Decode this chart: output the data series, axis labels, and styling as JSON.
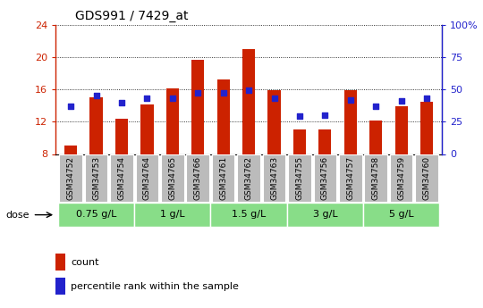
{
  "title": "GDS991 / 7429_at",
  "samples": [
    "GSM34752",
    "GSM34753",
    "GSM34754",
    "GSM34764",
    "GSM34765",
    "GSM34766",
    "GSM34761",
    "GSM34762",
    "GSM34763",
    "GSM34755",
    "GSM34756",
    "GSM34757",
    "GSM34758",
    "GSM34759",
    "GSM34760"
  ],
  "counts": [
    9.0,
    15.0,
    12.4,
    14.1,
    16.1,
    19.6,
    17.2,
    21.0,
    15.9,
    11.0,
    11.0,
    15.9,
    12.1,
    13.9,
    14.5
  ],
  "percentiles": [
    37,
    45,
    40,
    43,
    43,
    47,
    47,
    49,
    43,
    29,
    30,
    42,
    37,
    41,
    43
  ],
  "bar_bottom": 8,
  "ylim_left": [
    8,
    24
  ],
  "ylim_right": [
    0,
    100
  ],
  "yticks_left": [
    8,
    12,
    16,
    20,
    24
  ],
  "ytick_labels_left": [
    "8",
    "12",
    "16",
    "20",
    "24"
  ],
  "yticks_right": [
    0,
    25,
    50,
    75,
    100
  ],
  "ytick_labels_right": [
    "0",
    "25",
    "50",
    "75",
    "100%"
  ],
  "bar_color": "#cc2200",
  "dot_color": "#2222cc",
  "dose_groups": [
    {
      "label": "0.75 g/L",
      "start": 0,
      "end": 3
    },
    {
      "label": "1 g/L",
      "start": 3,
      "end": 6
    },
    {
      "label": "1.5 g/L",
      "start": 6,
      "end": 9
    },
    {
      "label": "3 g/L",
      "start": 9,
      "end": 12
    },
    {
      "label": "5 g/L",
      "start": 12,
      "end": 15
    }
  ],
  "dose_label": "dose",
  "legend_count": "count",
  "legend_percentile": "percentile rank within the sample",
  "grid_color": "#000000",
  "left_axis_color": "#cc2200",
  "right_axis_color": "#2222cc",
  "tick_label_bg": "#bbbbbb",
  "dose_bg": "#88dd88",
  "fig_width": 5.4,
  "fig_height": 3.45
}
